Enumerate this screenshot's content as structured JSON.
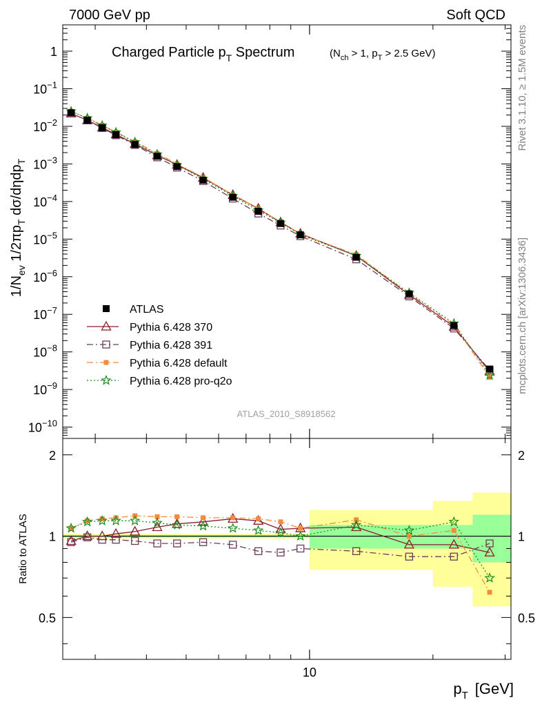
{
  "header": {
    "energy": "7000 GeV pp",
    "process": "Soft QCD"
  },
  "side_labels": {
    "rivet": "Rivet 3.1.10, ≥ 1.5M events",
    "source": "mcplots.cern.ch [arXiv:1306.3436]"
  },
  "analysis_id": "ATLAS_2010_S8918562",
  "colors": {
    "atlas": "#000000",
    "p370": "#8b1a2b",
    "p391": "#6b3a5a",
    "pdefault": "#f58a3a",
    "pq2o": "#1a8c1a",
    "band_yellow": "#ffff99",
    "band_green": "#99ff99"
  },
  "chart_data": [
    {
      "type": "scatter",
      "panel": "main",
      "title": "Charged Particle p_T Spectrum",
      "title_parts": {
        "main": "Charged Particle p",
        "sub": "T",
        "tail": " Spectrum"
      },
      "subtitle_parts": [
        "(N",
        "ch",
        " > 1, p",
        "T",
        " > 2.5 GeV)"
      ],
      "ylabel": "1/N_ev 1/2πp_T dσ/dηdp_T",
      "y_scale": "log",
      "ylim": [
        5e-11,
        5
      ],
      "xlim": [
        2.5,
        31
      ],
      "x_scale": "log",
      "y_tick_labels": [
        "10^-10",
        "10^-9",
        "10^-8",
        "10^-7",
        "10^-6",
        "10^-5",
        "10^-4",
        "10^-3",
        "10^-2",
        "10^-1",
        "1"
      ],
      "x": [
        2.62,
        2.87,
        3.12,
        3.37,
        3.75,
        4.25,
        4.75,
        5.5,
        6.5,
        7.5,
        8.5,
        9.5,
        13,
        17.5,
        22.5,
        27.5
      ],
      "series": [
        {
          "name": "ATLAS",
          "values": [
            0.023,
            0.0145,
            0.0092,
            0.006,
            0.0033,
            0.0016,
            0.00085,
            0.00037,
            0.00013,
            5.5e-05,
            2.6e-05,
            1.3e-05,
            3.3e-06,
            3.5e-07,
            5e-08,
            3.5e-09
          ]
        },
        {
          "name": "Pythia 6.428 370",
          "values": [
            0.022,
            0.0145,
            0.0093,
            0.0061,
            0.0034,
            0.0017,
            0.00095,
            0.00043,
            0.00015,
            6.5e-05,
            2.8e-05,
            1.4e-05,
            3.6e-06,
            3.3e-07,
            4.7e-08,
            3e-09
          ]
        },
        {
          "name": "Pythia 6.428 391",
          "values": [
            0.022,
            0.0145,
            0.009,
            0.0058,
            0.0032,
            0.0015,
            0.0008,
            0.00035,
            0.00012,
            4.8e-05,
            2.3e-05,
            1.2e-05,
            2.9e-06,
            3e-07,
            4.2e-08,
            3.3e-09
          ]
        },
        {
          "name": "Pythia 6.428 default",
          "values": [
            0.025,
            0.0165,
            0.0107,
            0.007,
            0.0039,
            0.0019,
            0.001,
            0.00044,
            0.00015,
            6.4e-05,
            2.9e-05,
            1.35e-05,
            3.9e-06,
            3.5e-07,
            5.3e-08,
            2.1e-09
          ]
        },
        {
          "name": "Pythia 6.428 pro-q2o",
          "values": [
            0.025,
            0.0165,
            0.0105,
            0.0069,
            0.0038,
            0.0018,
            0.00093,
            0.0004,
            0.00014,
            5.8e-05,
            2.75e-05,
            1.3e-05,
            3.6e-06,
            3.7e-07,
            5.7e-08,
            2.4e-09
          ]
        }
      ],
      "legend": "lower-left"
    },
    {
      "type": "scatter",
      "panel": "ratio",
      "ylabel": "Ratio to ATLAS",
      "xlabel": "p_T [GeV]",
      "xlabel_parts": {
        "main": "p",
        "sub": "T",
        "unit": "[GeV]"
      },
      "ylim": [
        0.35,
        2.3
      ],
      "xlim": [
        2.5,
        31
      ],
      "y_tick_labels": [
        "0.5",
        "1",
        "2"
      ],
      "x_tick_labels": [
        "10"
      ],
      "x": [
        2.62,
        2.87,
        3.12,
        3.37,
        3.75,
        4.25,
        4.75,
        5.5,
        6.5,
        7.5,
        8.5,
        9.5,
        13,
        17.5,
        22.5,
        27.5
      ],
      "uncertainty_bands": [
        {
          "x_range": [
            2.5,
            10
          ],
          "stat": 0.01,
          "total": 0.02
        },
        {
          "x_range": [
            10,
            15
          ],
          "stat": 0.1,
          "total": 0.25
        },
        {
          "x_range": [
            15,
            20
          ],
          "stat": 0.1,
          "total": 0.25
        },
        {
          "x_range": [
            20,
            25
          ],
          "stat": 0.1,
          "total": 0.35
        },
        {
          "x_range": [
            25,
            31
          ],
          "stat": 0.2,
          "total": 0.45
        }
      ],
      "series": [
        {
          "name": "Pythia 6.428 370",
          "values": [
            0.96,
            1.0,
            1.0,
            1.02,
            1.04,
            1.08,
            1.11,
            1.13,
            1.16,
            1.14,
            1.06,
            1.07,
            1.08,
            0.93,
            0.93,
            0.87
          ]
        },
        {
          "name": "Pythia 6.428 391",
          "values": [
            0.95,
            0.99,
            0.97,
            0.97,
            0.96,
            0.94,
            0.94,
            0.95,
            0.93,
            0.88,
            0.87,
            0.9,
            0.88,
            0.84,
            0.84,
            0.94
          ]
        },
        {
          "name": "Pythia 6.428 default",
          "values": [
            1.07,
            1.14,
            1.16,
            1.17,
            1.19,
            1.18,
            1.18,
            1.17,
            1.17,
            1.16,
            1.13,
            1.07,
            1.15,
            1.0,
            1.05,
            0.62
          ]
        },
        {
          "name": "Pythia 6.428 pro-q2o",
          "values": [
            1.07,
            1.13,
            1.14,
            1.14,
            1.14,
            1.12,
            1.1,
            1.09,
            1.07,
            1.05,
            1.03,
            1.0,
            1.1,
            1.05,
            1.13,
            0.7
          ]
        }
      ]
    }
  ]
}
